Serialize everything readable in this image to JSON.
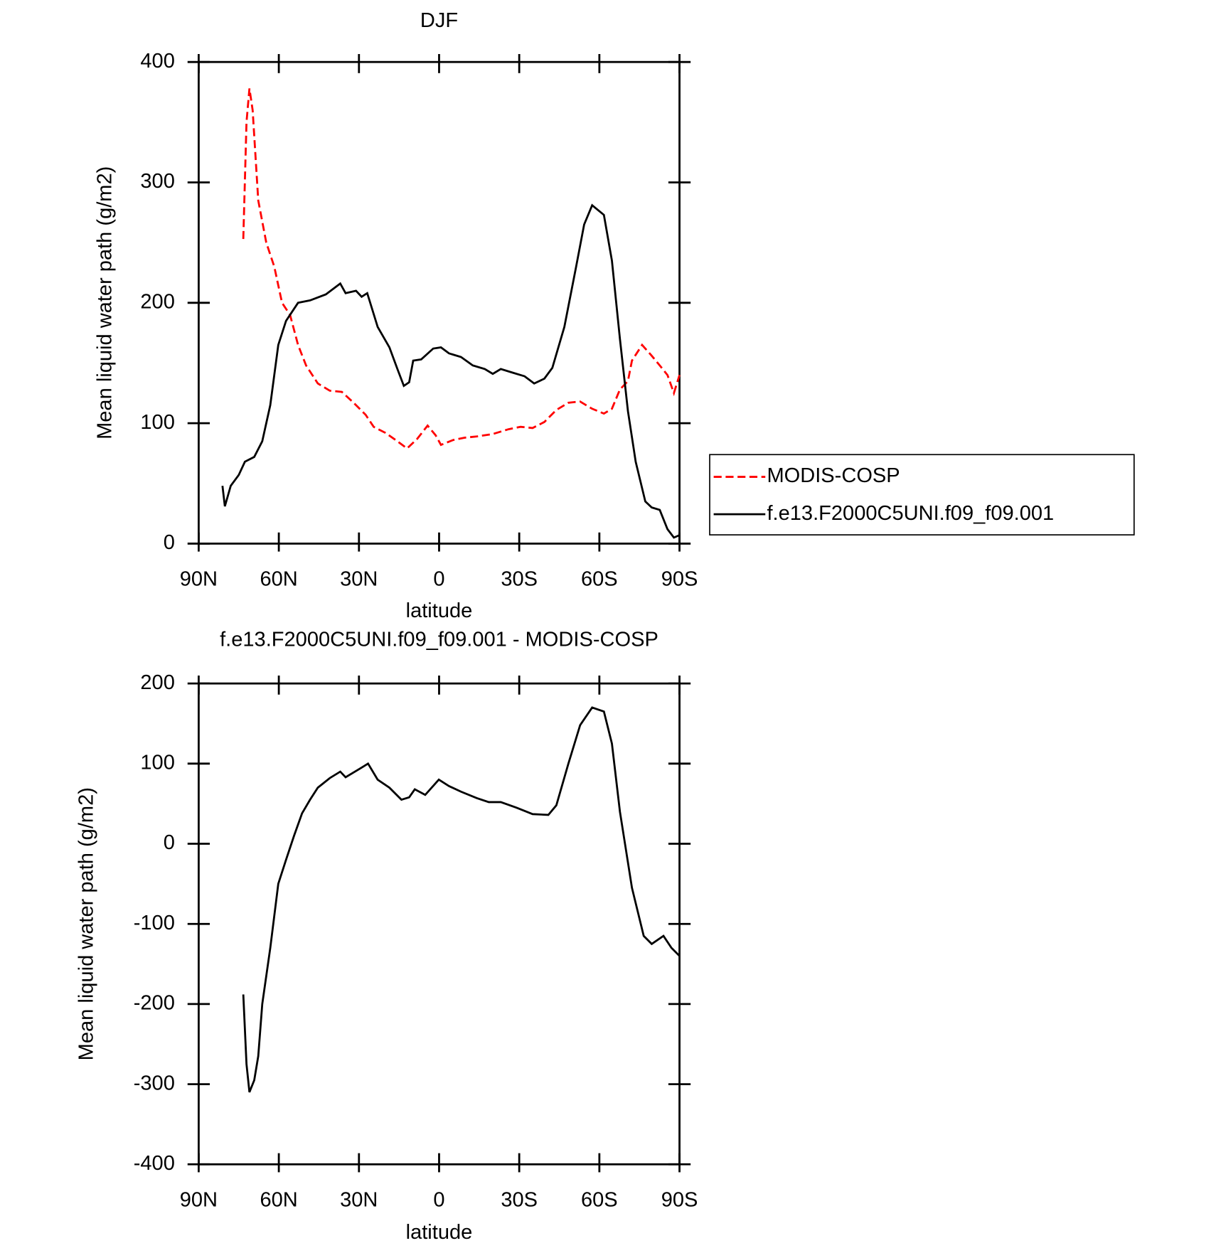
{
  "chart_data": [
    {
      "type": "line",
      "title": "DJF",
      "xlabel": "latitude",
      "ylabel": "Mean liquid water path (g/m2)",
      "xlim": [
        90,
        -90
      ],
      "ylim": [
        0,
        400
      ],
      "xticks": [
        {
          "value": 90,
          "label": "90N"
        },
        {
          "value": 60,
          "label": "60N"
        },
        {
          "value": 30,
          "label": "30N"
        },
        0,
        {
          "value": -30,
          "label": "30S"
        },
        {
          "value": -60,
          "label": "60S"
        },
        {
          "value": -90,
          "label": "90S"
        }
      ],
      "yticks": [
        0,
        100,
        200,
        300,
        400
      ],
      "legend": "right",
      "series": [
        {
          "name": "MODIS-COSP",
          "color": "#ff0000",
          "line_style": "dashed",
          "x": [
            73.3,
            72.1,
            71,
            69.8,
            67.7,
            64.7,
            61.7,
            58.8,
            55.8,
            52.8,
            49.8,
            45.4,
            40.9,
            36.4,
            32,
            27.5,
            24.5,
            20.1,
            15.6,
            12,
            8.2,
            4.3,
            1.3,
            -0.7,
            -5.2,
            -9.7,
            -14.1,
            -20.1,
            -26,
            -30.5,
            -35,
            -39.4,
            -43.9,
            -48.4,
            -52.8,
            -57.3,
            -61.7,
            -64.7,
            -67.7,
            -70.7,
            -72.2,
            -76,
            -79.6,
            -82.6,
            -85.5,
            -87.9,
            -90
          ],
          "values": [
            253,
            350,
            378,
            360,
            285,
            250,
            230,
            200,
            190,
            165,
            148,
            133,
            127,
            126,
            117,
            107,
            97,
            92,
            85,
            79,
            87,
            98,
            90,
            82,
            86,
            88,
            89,
            91,
            95,
            97,
            96,
            101,
            111,
            117,
            118,
            112,
            108,
            112,
            128,
            135,
            152,
            165,
            156,
            148,
            140,
            125,
            140
          ]
        },
        {
          "name": "f.e13.F2000C5UNI.f09_f09.001",
          "color": "#000000",
          "line_style": "solid",
          "x": [
            81.1,
            80.2,
            78,
            75,
            72.7,
            69.2,
            66.2,
            63.2,
            60.2,
            57.3,
            52.8,
            48.3,
            42.4,
            37,
            35,
            31.1,
            29,
            26.9,
            23,
            18.6,
            15.6,
            13.2,
            11.2,
            9.7,
            6.7,
            2.2,
            -0.7,
            -3.7,
            -8.2,
            -12.6,
            -17.1,
            -20.1,
            -23.1,
            -27.5,
            -32,
            -35.6,
            -39.4,
            -42.4,
            -46.9,
            -51.3,
            -54.3,
            -57.3,
            -61.7,
            -64.7,
            -67.7,
            -70.7,
            -73.6,
            -77.2,
            -79.6,
            -82.6,
            -85.5,
            -87.9,
            -90
          ],
          "values": [
            48,
            31,
            48,
            57,
            68,
            72,
            85,
            115,
            165,
            185,
            200,
            202,
            207,
            216,
            208,
            210,
            205,
            208,
            180,
            163,
            145,
            131,
            134,
            152,
            153,
            162,
            163,
            158,
            155,
            148,
            145,
            141,
            145,
            142,
            139,
            133,
            137,
            146,
            180,
            230,
            265,
            281,
            273,
            235,
            170,
            110,
            68,
            35,
            30,
            28,
            12,
            5,
            7
          ]
        }
      ]
    },
    {
      "type": "line",
      "title": "f.e13.F2000C5UNI.f09_f09.001 - MODIS-COSP",
      "xlabel": "latitude",
      "ylabel": "Mean liquid water path (g/m2)",
      "xlim": [
        90,
        -90
      ],
      "ylim": [
        -400,
        200
      ],
      "xticks": [
        {
          "value": 90,
          "label": "90N"
        },
        {
          "value": 60,
          "label": "60N"
        },
        {
          "value": 30,
          "label": "30N"
        },
        0,
        {
          "value": -30,
          "label": "30S"
        },
        {
          "value": -60,
          "label": "60S"
        },
        {
          "value": -90,
          "label": "90S"
        }
      ],
      "yticks": [
        -400,
        -300,
        -200,
        -100,
        0,
        100,
        200
      ],
      "series": [
        {
          "color": "#000000",
          "line_style": "solid",
          "x": [
            73.3,
            72.1,
            71,
            69.2,
            67.7,
            66.2,
            63.2,
            60.2,
            57.3,
            54.3,
            51.3,
            48.3,
            45.4,
            40.9,
            37,
            35,
            30.5,
            26.6,
            23,
            18.6,
            14.1,
            11.2,
            9.1,
            5.2,
            0.1,
            -3.7,
            -8.2,
            -14.1,
            -18.6,
            -23.1,
            -29,
            -35,
            -40.9,
            -43.9,
            -48.4,
            -52.8,
            -57.3,
            -61.7,
            -64.7,
            -67.7,
            -72.2,
            -76.6,
            -79.6,
            -84,
            -87,
            -90
          ],
          "values": [
            -188,
            -275,
            -310,
            -295,
            -265,
            -200,
            -130,
            -50,
            -20,
            10,
            38,
            55,
            70,
            82,
            90,
            83,
            92,
            100,
            80,
            70,
            55,
            58,
            68,
            61,
            80,
            72,
            65,
            57,
            52,
            52,
            45,
            37,
            36,
            48,
            100,
            148,
            170,
            165,
            125,
            40,
            -55,
            -115,
            -125,
            -115,
            -130,
            -140
          ]
        }
      ]
    }
  ]
}
